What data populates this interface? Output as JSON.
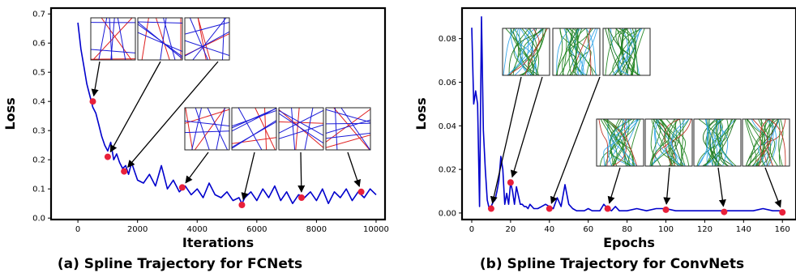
{
  "chart_data": [
    {
      "type": "line",
      "caption": "(a) Spline Trajectory for FCNets",
      "xlabel": "Iterations",
      "ylabel": "Loss",
      "xlim": [
        -900,
        10300
      ],
      "ylim": [
        -0.005,
        0.72
      ],
      "xticks": [
        0,
        2000,
        4000,
        6000,
        8000,
        10000
      ],
      "yticks": [
        0.0,
        0.1,
        0.2,
        0.3,
        0.4,
        0.5,
        0.6,
        0.7
      ],
      "ytick_labels": [
        "0.0",
        "0.1",
        "0.2",
        "0.3",
        "0.4",
        "0.5",
        "0.6",
        "0.7"
      ],
      "line_color": "#0000cc",
      "marker_color": "#e8203a",
      "series": [
        {
          "x": [
            0,
            100,
            200,
            300,
            400,
            500,
            600,
            700,
            800,
            900,
            1000,
            1100,
            1200,
            1300,
            1400,
            1500,
            1600,
            1700,
            1800,
            1900,
            2000,
            2200,
            2400,
            2600,
            2800,
            3000,
            3200,
            3400,
            3600,
            3800,
            4000,
            4200,
            4400,
            4600,
            4800,
            5000,
            5200,
            5400,
            5500,
            5600,
            5800,
            6000,
            6200,
            6400,
            6600,
            6800,
            7000,
            7200,
            7400,
            7600,
            7800,
            8000,
            8200,
            8400,
            8600,
            8800,
            9000,
            9200,
            9400,
            9600,
            9800,
            10000
          ],
          "y": [
            0.67,
            0.58,
            0.52,
            0.46,
            0.42,
            0.38,
            0.36,
            0.32,
            0.28,
            0.25,
            0.23,
            0.26,
            0.2,
            0.22,
            0.19,
            0.17,
            0.18,
            0.15,
            0.19,
            0.16,
            0.13,
            0.12,
            0.15,
            0.11,
            0.18,
            0.1,
            0.13,
            0.09,
            0.11,
            0.08,
            0.1,
            0.07,
            0.12,
            0.08,
            0.07,
            0.09,
            0.06,
            0.07,
            0.05,
            0.07,
            0.09,
            0.06,
            0.1,
            0.07,
            0.11,
            0.06,
            0.09,
            0.05,
            0.08,
            0.07,
            0.09,
            0.06,
            0.1,
            0.05,
            0.09,
            0.07,
            0.1,
            0.06,
            0.09,
            0.07,
            0.1,
            0.08
          ]
        }
      ],
      "markers": [
        {
          "x": 500,
          "y": 0.4
        },
        {
          "x": 1000,
          "y": 0.21
        },
        {
          "x": 1550,
          "y": 0.16
        },
        {
          "x": 3500,
          "y": 0.105
        },
        {
          "x": 5500,
          "y": 0.045
        },
        {
          "x": 7500,
          "y": 0.07
        },
        {
          "x": 9500,
          "y": 0.09
        }
      ],
      "insets": [
        {
          "kind": "fc"
        },
        {
          "kind": "fc"
        },
        {
          "kind": "fc"
        },
        {
          "kind": "fc"
        },
        {
          "kind": "fc"
        },
        {
          "kind": "fc"
        },
        {
          "kind": "fc"
        }
      ]
    },
    {
      "type": "line",
      "caption": "(b) Spline Trajectory for ConvNets",
      "xlabel": "Epochs",
      "ylabel": "Loss",
      "xlim": [
        -5,
        167
      ],
      "ylim": [
        -0.003,
        0.094
      ],
      "xticks": [
        0,
        20,
        40,
        60,
        80,
        100,
        120,
        140,
        160
      ],
      "yticks": [
        0.0,
        0.02,
        0.04,
        0.06,
        0.08
      ],
      "ytick_labels": [
        "0.00",
        "0.02",
        "0.04",
        "0.06",
        "0.08"
      ],
      "line_color": "#0000cc",
      "marker_color": "#e8203a",
      "series": [
        {
          "x": [
            0,
            1,
            2,
            3,
            4,
            5,
            6,
            7,
            8,
            9,
            10,
            11,
            12,
            13,
            14,
            15,
            16,
            17,
            18,
            19,
            20,
            21,
            22,
            23,
            24,
            25,
            26,
            27,
            28,
            29,
            30,
            32,
            34,
            36,
            38,
            40,
            42,
            44,
            46,
            48,
            50,
            52,
            54,
            56,
            58,
            60,
            62,
            64,
            66,
            68,
            70,
            72,
            74,
            76,
            78,
            80,
            85,
            90,
            95,
            100,
            105,
            110,
            115,
            120,
            125,
            130,
            135,
            140,
            145,
            150,
            155,
            160
          ],
          "y": [
            0.085,
            0.05,
            0.056,
            0.05,
            0.003,
            0.09,
            0.038,
            0.02,
            0.006,
            0.002,
            0.003,
            0.005,
            0.006,
            0.01,
            0.015,
            0.026,
            0.02,
            0.004,
            0.009,
            0.004,
            0.014,
            0.01,
            0.004,
            0.012,
            0.008,
            0.004,
            0.004,
            0.003,
            0.003,
            0.002,
            0.004,
            0.002,
            0.002,
            0.003,
            0.004,
            0.003,
            0.002,
            0.007,
            0.003,
            0.013,
            0.004,
            0.002,
            0.001,
            0.001,
            0.001,
            0.002,
            0.001,
            0.001,
            0.001,
            0.004,
            0.002,
            0.001,
            0.003,
            0.001,
            0.001,
            0.001,
            0.002,
            0.001,
            0.002,
            0.002,
            0.001,
            0.001,
            0.001,
            0.001,
            0.001,
            0.001,
            0.001,
            0.001,
            0.001,
            0.002,
            0.001,
            0.001
          ]
        }
      ],
      "markers": [
        {
          "x": 10,
          "y": 0.002
        },
        {
          "x": 20,
          "y": 0.014
        },
        {
          "x": 40,
          "y": 0.002
        },
        {
          "x": 70,
          "y": 0.002
        },
        {
          "x": 100,
          "y": 0.0015
        },
        {
          "x": 130,
          "y": 0.0005
        },
        {
          "x": 160,
          "y": 0.0003
        }
      ],
      "insets": [
        {
          "kind": "conv"
        },
        {
          "kind": "conv"
        },
        {
          "kind": "conv"
        },
        {
          "kind": "conv"
        },
        {
          "kind": "conv"
        },
        {
          "kind": "conv"
        },
        {
          "kind": "conv"
        }
      ]
    }
  ]
}
